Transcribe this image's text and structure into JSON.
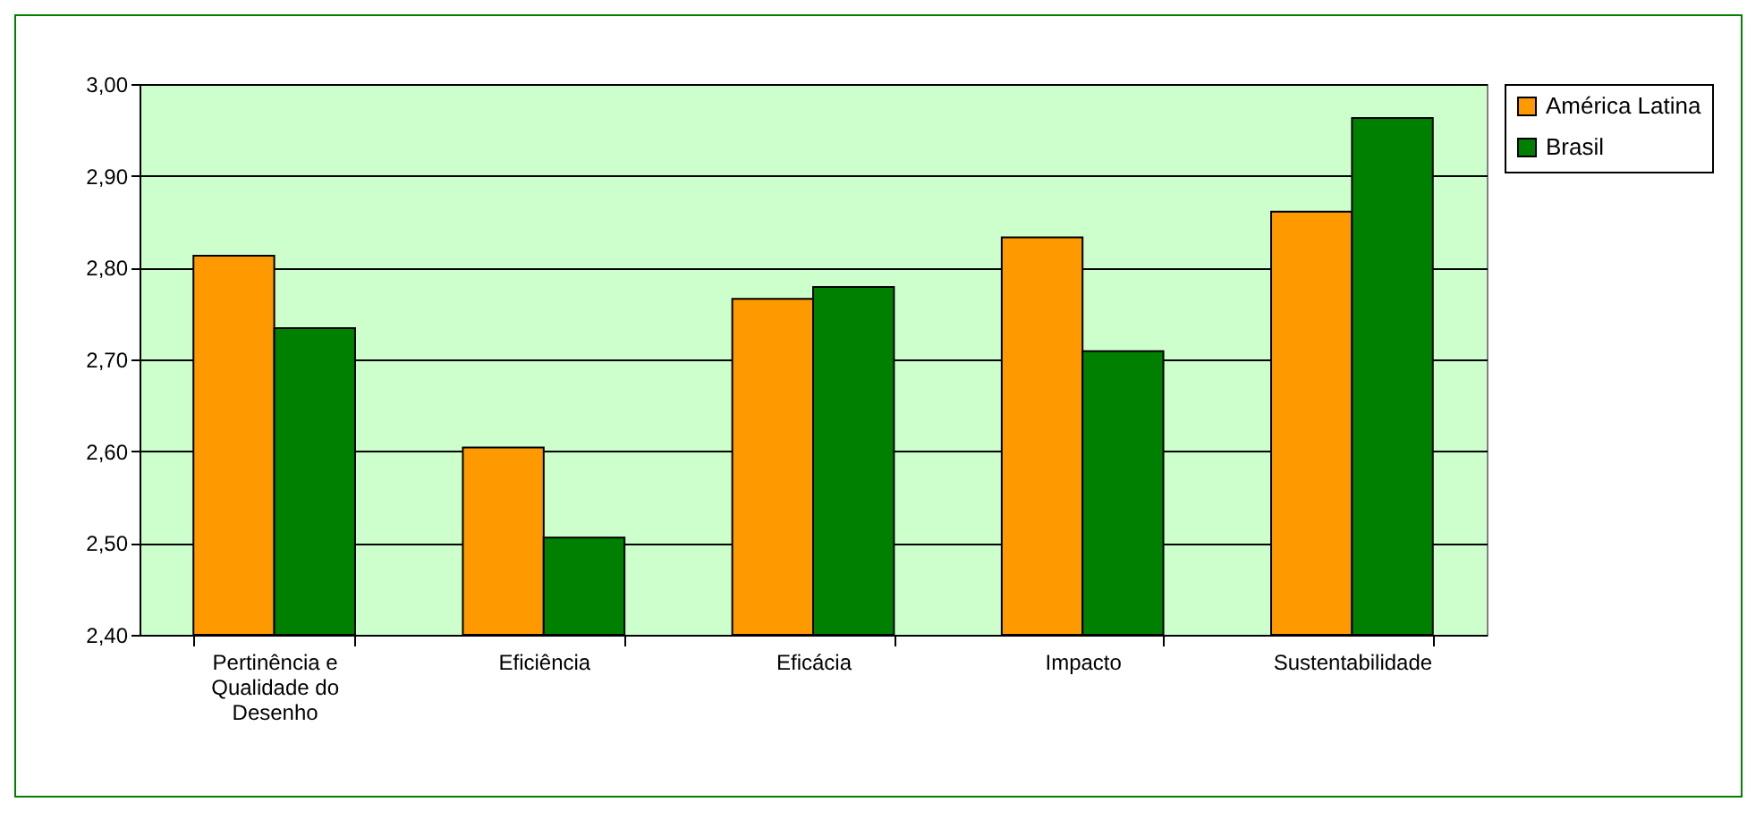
{
  "chart_data": {
    "type": "bar",
    "categories": [
      "Pertinência e Qualidade do Desenho",
      "Eficiência",
      "Eficácia",
      "Impacto",
      "Sustentabilidade"
    ],
    "series": [
      {
        "name": "América Latina",
        "color": "#ff9900",
        "values": [
          2.813,
          2.604,
          2.766,
          2.833,
          2.861
        ]
      },
      {
        "name": "Brasil",
        "color": "#008000",
        "values": [
          2.734,
          2.506,
          2.779,
          2.709,
          2.963
        ]
      }
    ],
    "ylim": [
      2.4,
      3.0
    ],
    "yticks": [
      {
        "value": 2.4,
        "label": "2,40"
      },
      {
        "value": 2.5,
        "label": "2,50"
      },
      {
        "value": 2.6,
        "label": "2,60"
      },
      {
        "value": 2.7,
        "label": "2,70"
      },
      {
        "value": 2.8,
        "label": "2,80"
      },
      {
        "value": 2.9,
        "label": "2,90"
      },
      {
        "value": 3.0,
        "label": "3,00"
      }
    ],
    "grid": "y",
    "legend": "right"
  }
}
